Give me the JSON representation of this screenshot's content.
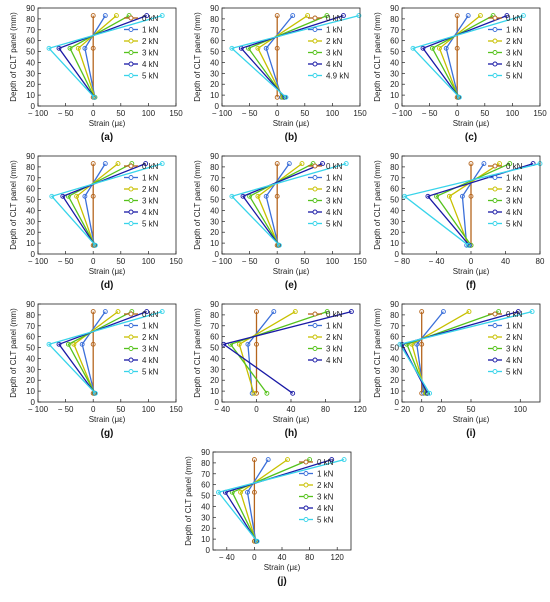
{
  "figure": {
    "colors": [
      "#b5651d",
      "#3b6fd9",
      "#c8c000",
      "#55c21c",
      "#1a1aa6",
      "#38d4ea"
    ],
    "tick_font_px": 8,
    "label_font_px": 8
  },
  "chart_data": [
    {
      "type": "line",
      "panel_label": "(a)",
      "xlabel": "Strain (με)",
      "ylabel": "Depth of CLT panel (mm)",
      "xlim": [
        -100,
        150
      ],
      "ylim": [
        0,
        90
      ],
      "xticks": [
        -100,
        -50,
        0,
        50,
        100,
        150
      ],
      "yticks": [
        0,
        10,
        20,
        30,
        40,
        50,
        60,
        70,
        80,
        90
      ],
      "y": [
        8,
        53,
        83
      ],
      "legend_position": "right",
      "grid": false,
      "series": [
        {
          "name": "0 kN",
          "values": [
            0,
            0,
            0
          ]
        },
        {
          "name": "1 kN",
          "values": [
            3,
            -15,
            22
          ]
        },
        {
          "name": "2 kN",
          "values": [
            3,
            -27,
            42
          ]
        },
        {
          "name": "3 kN",
          "values": [
            2,
            -42,
            65
          ]
        },
        {
          "name": "4 kN",
          "values": [
            2,
            -62,
            97
          ]
        },
        {
          "name": "5 kN",
          "values": [
            2,
            -80,
            125
          ]
        }
      ]
    },
    {
      "type": "line",
      "panel_label": "(b)",
      "xlabel": "Strain (με)",
      "ylabel": "Depth of CLT panel (mm)",
      "xlim": [
        -100,
        150
      ],
      "ylim": [
        0,
        90
      ],
      "xticks": [
        -100,
        -50,
        0,
        50,
        100,
        150
      ],
      "yticks": [
        0,
        10,
        20,
        30,
        40,
        50,
        60,
        70,
        80,
        90
      ],
      "y": [
        8,
        53,
        83
      ],
      "legend_position": "right",
      "grid": false,
      "series": [
        {
          "name": "0 kN",
          "values": [
            0,
            0,
            0
          ]
        },
        {
          "name": "1 kN",
          "values": [
            8,
            -20,
            28
          ]
        },
        {
          "name": "2 kN",
          "values": [
            10,
            -35,
            55
          ]
        },
        {
          "name": "3 kN",
          "values": [
            12,
            -52,
            90
          ]
        },
        {
          "name": "4 kN",
          "values": [
            14,
            -65,
            120
          ]
        },
        {
          "name": "4.9 kN",
          "values": [
            16,
            -82,
            148
          ]
        }
      ]
    },
    {
      "type": "line",
      "panel_label": "(c)",
      "xlabel": "Strain (με)",
      "ylabel": "Depth of CLT panel (mm)",
      "xlim": [
        -100,
        150
      ],
      "ylim": [
        0,
        90
      ],
      "xticks": [
        -100,
        -50,
        0,
        50,
        100,
        150
      ],
      "yticks": [
        0,
        10,
        20,
        30,
        40,
        50,
        60,
        70,
        80,
        90
      ],
      "y": [
        8,
        53,
        83
      ],
      "legend_position": "right",
      "grid": false,
      "series": [
        {
          "name": "0 kN",
          "values": [
            0,
            0,
            0
          ]
        },
        {
          "name": "1 kN",
          "values": [
            2,
            -20,
            20
          ]
        },
        {
          "name": "2 kN",
          "values": [
            2,
            -32,
            42
          ]
        },
        {
          "name": "3 kN",
          "values": [
            3,
            -45,
            65
          ]
        },
        {
          "name": "4 kN",
          "values": [
            3,
            -62,
            90
          ]
        },
        {
          "name": "5 kN",
          "values": [
            4,
            -80,
            120
          ]
        }
      ]
    },
    {
      "type": "line",
      "panel_label": "(d)",
      "xlabel": "Strain (με)",
      "ylabel": "Depth of CLT panel (mm)",
      "xlim": [
        -100,
        150
      ],
      "ylim": [
        0,
        90
      ],
      "xticks": [
        -100,
        -50,
        0,
        50,
        100,
        150
      ],
      "yticks": [
        0,
        10,
        20,
        30,
        40,
        50,
        60,
        70,
        80,
        90
      ],
      "y": [
        8,
        53,
        83
      ],
      "legend_position": "right",
      "grid": false,
      "series": [
        {
          "name": "0 kN",
          "values": [
            0,
            0,
            0
          ]
        },
        {
          "name": "1 kN",
          "values": [
            2,
            -15,
            22
          ]
        },
        {
          "name": "2 kN",
          "values": [
            2,
            -30,
            45
          ]
        },
        {
          "name": "3 kN",
          "values": [
            3,
            -45,
            70
          ]
        },
        {
          "name": "4 kN",
          "values": [
            3,
            -55,
            95
          ]
        },
        {
          "name": "5 kN",
          "values": [
            4,
            -75,
            125
          ]
        }
      ]
    },
    {
      "type": "line",
      "panel_label": "(e)",
      "xlabel": "Strain (με)",
      "ylabel": "Depth of CLT panel (mm)",
      "xlim": [
        -100,
        150
      ],
      "ylim": [
        0,
        90
      ],
      "xticks": [
        -100,
        -50,
        0,
        50,
        100,
        150
      ],
      "yticks": [
        0,
        10,
        20,
        30,
        40,
        50,
        60,
        70,
        80,
        90
      ],
      "y": [
        8,
        53,
        83
      ],
      "legend_position": "right",
      "grid": false,
      "series": [
        {
          "name": "0 kN",
          "values": [
            0,
            0,
            0
          ]
        },
        {
          "name": "1 kN",
          "values": [
            2,
            -20,
            22
          ]
        },
        {
          "name": "2 kN",
          "values": [
            2,
            -35,
            45
          ]
        },
        {
          "name": "3 kN",
          "values": [
            3,
            -50,
            65
          ]
        },
        {
          "name": "4 kN",
          "values": [
            3,
            -62,
            82
          ]
        },
        {
          "name": "5 kN",
          "values": [
            4,
            -82,
            125
          ]
        }
      ]
    },
    {
      "type": "line",
      "panel_label": "(f)",
      "xlabel": "Strain (με)",
      "ylabel": "Depth of CLT panel (mm)",
      "xlim": [
        -80,
        80
      ],
      "ylim": [
        0,
        90
      ],
      "xticks": [
        -80,
        -40,
        0,
        40,
        80
      ],
      "yticks": [
        0,
        10,
        20,
        30,
        40,
        50,
        60,
        70,
        80,
        90
      ],
      "y": [
        8,
        53,
        83
      ],
      "legend_position": "right",
      "grid": false,
      "series": [
        {
          "name": "0 kN",
          "values": [
            0,
            0,
            0
          ]
        },
        {
          "name": "1 kN",
          "values": [
            -5,
            -10,
            15
          ]
        },
        {
          "name": "2 kN",
          "values": [
            -3,
            -25,
            33
          ]
        },
        {
          "name": "3 kN",
          "values": [
            0,
            -40,
            45
          ]
        },
        {
          "name": "4 kN",
          "values": [
            -2,
            -50,
            72
          ]
        },
        {
          "name": "5 kN",
          "values": [
            -3,
            -77,
            80
          ]
        }
      ]
    },
    {
      "type": "line",
      "panel_label": "(g)",
      "xlabel": "Strain (με)",
      "ylabel": "Depth of CLT panel (mm)",
      "xlim": [
        -100,
        150
      ],
      "ylim": [
        0,
        90
      ],
      "xticks": [
        -100,
        -50,
        0,
        50,
        100,
        150
      ],
      "yticks": [
        0,
        10,
        20,
        30,
        40,
        50,
        60,
        70,
        80,
        90
      ],
      "y": [
        8,
        53,
        83
      ],
      "legend_position": "right",
      "grid": false,
      "series": [
        {
          "name": "0 kN",
          "values": [
            0,
            0,
            0
          ]
        },
        {
          "name": "1 kN",
          "values": [
            2,
            -20,
            22
          ]
        },
        {
          "name": "2 kN",
          "values": [
            2,
            -35,
            45
          ]
        },
        {
          "name": "3 kN",
          "values": [
            3,
            -45,
            70
          ]
        },
        {
          "name": "4 kN",
          "values": [
            3,
            -62,
            97
          ]
        },
        {
          "name": "5 kN",
          "values": [
            4,
            -80,
            125
          ]
        }
      ]
    },
    {
      "type": "line",
      "panel_label": "(h)",
      "xlabel": "Strain (με)",
      "ylabel": "Depth of CLT panel (mm)",
      "xlim": [
        -40,
        120
      ],
      "ylim": [
        0,
        90
      ],
      "xticks": [
        -40,
        0,
        40,
        80,
        120
      ],
      "yticks": [
        0,
        10,
        20,
        30,
        40,
        50,
        60,
        70,
        80,
        90
      ],
      "y": [
        8,
        53,
        83
      ],
      "legend_position": "right",
      "grid": false,
      "series": [
        {
          "name": "0 kN",
          "values": [
            0,
            0,
            0
          ]
        },
        {
          "name": "1 kN",
          "values": [
            -5,
            -10,
            20
          ]
        },
        {
          "name": "2 kN",
          "values": [
            -3,
            -20,
            45
          ]
        },
        {
          "name": "3 kN",
          "values": [
            12,
            -30,
            82
          ]
        },
        {
          "name": "4 kN",
          "values": [
            42,
            -38,
            110
          ]
        }
      ]
    },
    {
      "type": "line",
      "panel_label": "(i)",
      "xlabel": "Strain (με)",
      "ylabel": "Depth of CLT panel (mm)",
      "xlim": [
        -20,
        120
      ],
      "ylim": [
        0,
        90
      ],
      "xticks": [
        -20,
        0,
        20,
        50,
        100
      ],
      "yticks": [
        0,
        10,
        20,
        30,
        40,
        50,
        60,
        70,
        80,
        90
      ],
      "y": [
        8,
        53,
        83
      ],
      "legend_position": "right",
      "grid": false,
      "series": [
        {
          "name": "0 kN",
          "values": [
            0,
            0,
            0
          ]
        },
        {
          "name": "1 kN",
          "values": [
            2,
            -5,
            22
          ]
        },
        {
          "name": "2 kN",
          "values": [
            4,
            -10,
            48
          ]
        },
        {
          "name": "3 kN",
          "values": [
            5,
            -15,
            78
          ]
        },
        {
          "name": "4 kN",
          "values": [
            6,
            -20,
            98
          ]
        },
        {
          "name": "5 kN",
          "values": [
            8,
            -22,
            112
          ]
        }
      ]
    },
    {
      "type": "line",
      "panel_label": "(j)",
      "xlabel": "Strain (με)",
      "ylabel": "Depth of CLT panel (mm)",
      "xlim": [
        -60,
        140
      ],
      "ylim": [
        0,
        90
      ],
      "xticks": [
        -40,
        0,
        40,
        80,
        120
      ],
      "yticks": [
        0,
        10,
        20,
        30,
        40,
        50,
        60,
        70,
        80,
        90
      ],
      "y": [
        8,
        53,
        83
      ],
      "legend_position": "right",
      "grid": false,
      "series": [
        {
          "name": "0 kN",
          "values": [
            0,
            0,
            0
          ]
        },
        {
          "name": "1 kN",
          "values": [
            2,
            -10,
            20
          ]
        },
        {
          "name": "2 kN",
          "values": [
            2,
            -20,
            48
          ]
        },
        {
          "name": "3 kN",
          "values": [
            3,
            -32,
            80
          ]
        },
        {
          "name": "4 kN",
          "values": [
            3,
            -42,
            112
          ]
        },
        {
          "name": "5 kN",
          "values": [
            4,
            -52,
            130
          ]
        }
      ]
    }
  ]
}
